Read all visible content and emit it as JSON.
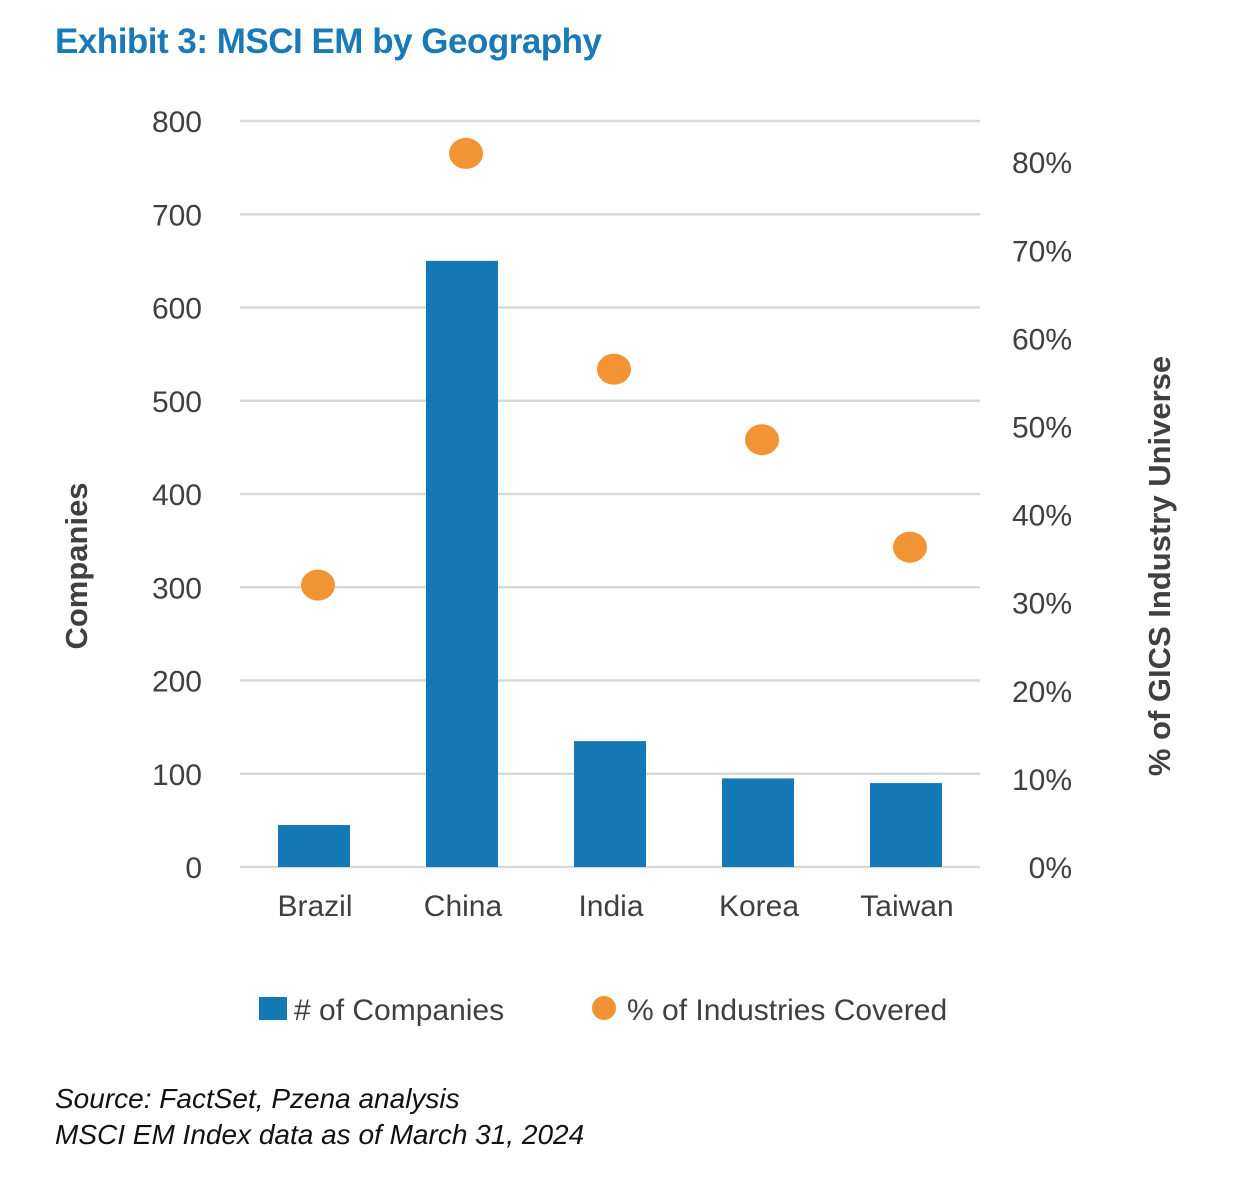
{
  "title": "Exhibit 3: MSCI EM by Geography",
  "source": {
    "line1": "Source: FactSet, Pzena analysis",
    "line2": "MSCI EM Index data as of March 31, 2024"
  },
  "colors": {
    "title": "#1a7ab8",
    "bar": "#1478b5",
    "dot": "#f29433",
    "grid": "#d9d9d9",
    "text": "#404040"
  },
  "chart_data": {
    "type": "bar",
    "categories": [
      "Brazil",
      "China",
      "India",
      "Korea",
      "Taiwan"
    ],
    "series": [
      {
        "name": "# of Companies",
        "type": "bar",
        "axis": "left",
        "values": [
          45,
          650,
          135,
          95,
          90
        ]
      },
      {
        "name": "% of Industries Covered",
        "type": "scatter",
        "axis": "right",
        "values": [
          32,
          81,
          56.5,
          48.5,
          36.3
        ]
      }
    ],
    "ylabel": "Companies",
    "ylabel_right": "% of GICS Industry Universe",
    "ylim": [
      0,
      800
    ],
    "ylim_right": [
      0,
      85
    ],
    "yticks": [
      "0",
      "100",
      "200",
      "300",
      "400",
      "500",
      "600",
      "700",
      "800"
    ],
    "yticks_right": [
      "0%",
      "10%",
      "20%",
      "30%",
      "40%",
      "50%",
      "60%",
      "70%",
      "80%"
    ],
    "grid": true,
    "legend": "bottom"
  }
}
